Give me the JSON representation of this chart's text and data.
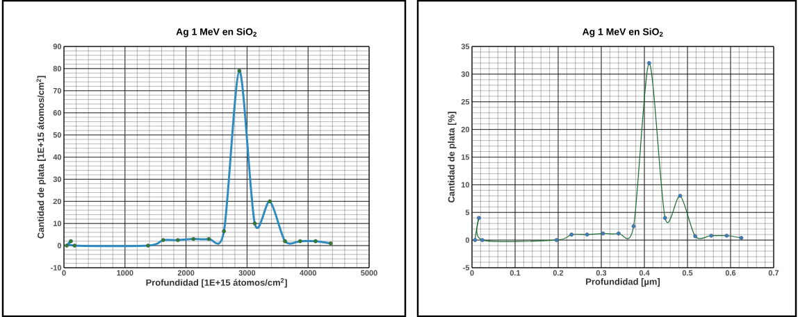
{
  "chart_data": [
    {
      "type": "line",
      "title": "Ag 1 MeV en SiO$_{2}$",
      "xlabel": "Profundidad  [1E+15  átomos/cm$^{2}$]",
      "ylabel": "Cantidad de plata [1E+15  átomos/cm$^{2}$]",
      "xlim": [
        0,
        5000
      ],
      "ylim": [
        -10,
        90
      ],
      "xticks": [
        0,
        1000,
        2000,
        3000,
        4000,
        5000
      ],
      "yticks": [
        -10,
        0,
        10,
        20,
        30,
        40,
        50,
        60,
        70,
        80,
        90
      ],
      "grid": true,
      "marker": "circle",
      "line_style": "solid",
      "series": [
        {
          "color": "#2e8bc0",
          "x": [
            45,
            114,
            175,
            1378,
            1626,
            1866,
            2122,
            2374,
            2622,
            2874,
            3126,
            3374,
            3622,
            3870,
            4122,
            4370
          ],
          "values": [
            0,
            2,
            0,
            0,
            2.5,
            2.5,
            3,
            3,
            6.5,
            79,
            10,
            20,
            2,
            2,
            2,
            1
          ]
        }
      ]
    },
    {
      "type": "line",
      "title": "Ag 1 MeV en SiO$_{2}$",
      "xlabel": "Profundidad  [µm]",
      "ylabel": "Cantidad de plata [%]",
      "xlim": [
        0,
        0.7
      ],
      "ylim": [
        -5,
        35
      ],
      "xticks": [
        0,
        0.1,
        0.2,
        0.3,
        0.4,
        0.5,
        0.6,
        0.7
      ],
      "yticks": [
        -5,
        0,
        5,
        10,
        15,
        20,
        25,
        30,
        35
      ],
      "grid": true,
      "marker": "circle",
      "line_style": "solid",
      "series": [
        {
          "color": "#1a6b30",
          "x": [
            0.007,
            0.016,
            0.024,
            0.196,
            0.231,
            0.267,
            0.304,
            0.34,
            0.375,
            0.411,
            0.448,
            0.483,
            0.518,
            0.555,
            0.591,
            0.625
          ],
          "values": [
            0,
            4,
            0,
            0,
            1,
            1,
            1.2,
            1.2,
            2.5,
            32,
            4,
            8,
            0.7,
            0.8,
            0.8,
            0.4
          ]
        }
      ]
    }
  ]
}
